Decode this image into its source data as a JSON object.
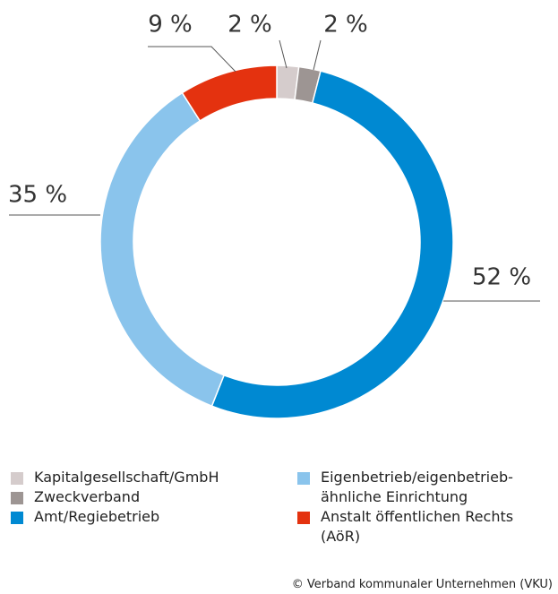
{
  "chart_data": {
    "type": "donut",
    "categories": [
      "Kapitalgesellschaft/GmbH",
      "Zweckverband",
      "Amt/Regiebetrieb",
      "Eigenbetrieb/eigenbetrieb-ähnliche Einrichtung",
      "Anstalt öffentlichen Rechts (AöR)"
    ],
    "values": [
      2,
      2,
      52,
      35,
      9
    ],
    "value_labels": [
      "2 %",
      "2 %",
      "52 %",
      "35 %",
      "9 %"
    ],
    "colors": [
      "#d5cccc",
      "#9d9593",
      "#0089d2",
      "#8ac4ec",
      "#e4320f"
    ],
    "source": "© Verband kommunaler Unternehmen (VKU)"
  }
}
